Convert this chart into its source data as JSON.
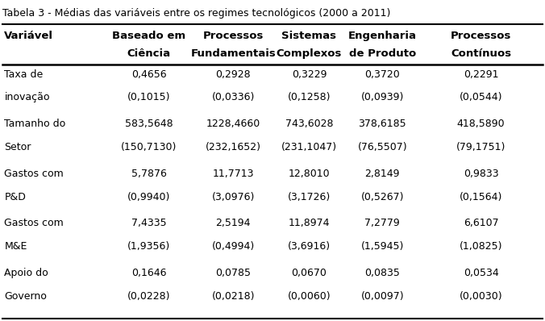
{
  "title": "Tabela 3 - Médias das variáveis entre os regimes tecnológicos (2000 a 2011)",
  "col_headers_line1": [
    "Variável",
    "Baseado em",
    "Processos",
    "Sistemas",
    "Engenharia",
    "Processos"
  ],
  "col_headers_line2": [
    "",
    "Ciência",
    "Fundamentais",
    "Complexos",
    "de Produto",
    "Contínuos"
  ],
  "rows": [
    {
      "label_line1": "Taxa de",
      "label_line2": "inovação",
      "values": [
        "0,4656",
        "0,2928",
        "0,3229",
        "0,3720",
        "0,2291"
      ],
      "std": [
        "(0,1015)",
        "(0,0336)",
        "(0,1258)",
        "(0,0939)",
        "(0,0544)"
      ]
    },
    {
      "label_line1": "Tamanho do",
      "label_line2": "Setor",
      "values": [
        "583,5648",
        "1228,4660",
        "743,6028",
        "378,6185",
        "418,5890"
      ],
      "std": [
        "(150,7130)",
        "(232,1652)",
        "(231,1047)",
        "(76,5507)",
        "(79,1751)"
      ]
    },
    {
      "label_line1": "Gastos com",
      "label_line2": "P&D",
      "values": [
        "5,7876",
        "11,7713",
        "12,8010",
        "2,8149",
        "0,9833"
      ],
      "std": [
        "(0,9940)",
        "(3,0976)",
        "(3,1726)",
        "(0,5267)",
        "(0,1564)"
      ]
    },
    {
      "label_line1": "Gastos com",
      "label_line2": "M&E",
      "values": [
        "7,4335",
        "2,5194",
        "11,8974",
        "7,2779",
        "6,6107"
      ],
      "std": [
        "(1,9356)",
        "(0,4994)",
        "(3,6916)",
        "(1,5945)",
        "(1,0825)"
      ]
    },
    {
      "label_line1": "Apoio do",
      "label_line2": "Governo",
      "values": [
        "0,1646",
        "0,0785",
        "0,0670",
        "0,0835",
        "0,0534"
      ],
      "std": [
        "(0,0228)",
        "(0,0218)",
        "(0,0060)",
        "(0,0097)",
        "(0,0030)"
      ]
    }
  ],
  "bg_color": "#ffffff",
  "text_color": "#000000",
  "title_fontsize": 9,
  "header_fontsize": 9.5,
  "body_fontsize": 9
}
